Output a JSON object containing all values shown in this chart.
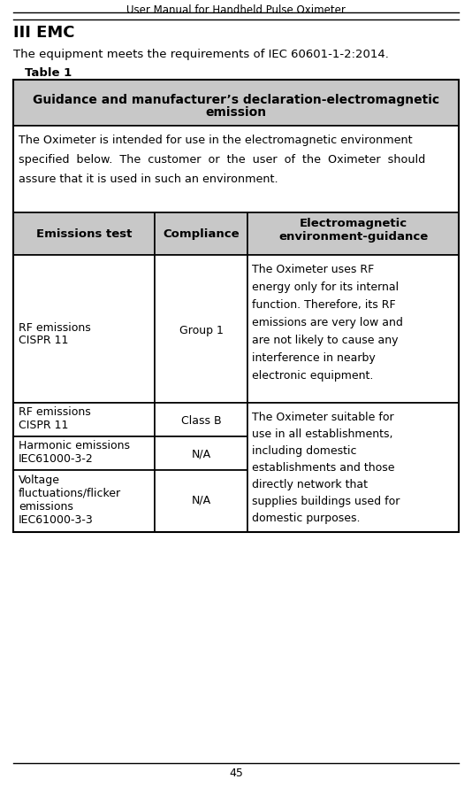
{
  "page_title": "User Manual for Handheld Pulse Oximeter",
  "page_number": "45",
  "section_title": "III EMC",
  "intro_text": "The equipment meets the requirements of IEC 60601-1-2:2014.",
  "table_label": "Table 1",
  "table_header_line1": "Guidance and manufacturer’s declaration-electromagnetic",
  "table_header_line2": "emission",
  "table_intro_lines": [
    "The Oximeter is intended for use in the electromagnetic environment",
    "specified  below.  The  customer  or  the  user  of  the  Oximeter  should",
    "assure that it is used in such an environment."
  ],
  "col_headers": [
    "Emissions test",
    "Compliance",
    "Electromagnetic\nenvironment-guidance"
  ],
  "row0_test": "RF emissions\nCISPR 11",
  "row0_compliance": "Group 1",
  "row0_guidance_lines": [
    "The Oximeter uses RF",
    "energy only for its internal",
    "function. Therefore, its RF",
    "emissions are very low and",
    "are not likely to cause any",
    "interference in nearby",
    "electronic equipment."
  ],
  "row1_test": "RF emissions\nCISPR 11",
  "row1_compliance": "Class B",
  "row2_test": "Harmonic emissions\nIEC61000-3-2",
  "row2_compliance": "N/A",
  "row3_test": "Voltage\nfluctuations/flicker\nemissions\nIEC61000-3-3",
  "row3_compliance": "N/A",
  "rows123_guidance_lines": [
    "The Oximeter suitable for",
    "use in all establishments,",
    "including domestic",
    "establishments and those",
    "directly network that",
    "supplies buildings used for",
    "domestic purposes."
  ],
  "bg_color": "#ffffff",
  "header_bg": "#c8c8c8",
  "text_color": "#000000"
}
